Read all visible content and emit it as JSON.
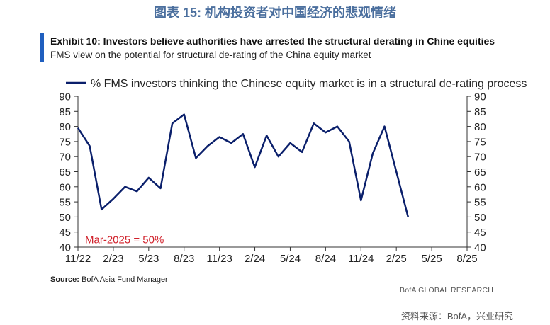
{
  "figure_title": "图表 15: 机构投资者对中国经济的悲观情绪",
  "exhibit": {
    "title": "Exhibit 10: Investors believe authorities have arrested the structural derating in Chine equities",
    "subtitle": "FMS view on the potential for structural de-rating of the China equity market"
  },
  "source_label": "Source:",
  "source_text": "BofA Asia Fund Manager",
  "brand": "BofA GLOBAL RESEARCH",
  "cn_source": "资料来源：BofA，兴业研究",
  "colors": {
    "line": "#0a1f6b",
    "annotation": "#d0202a",
    "title": "#4b6f9e",
    "accent": "#1f5fbf"
  },
  "chart_data": {
    "type": "line",
    "legend": "% FMS investors thinking the Chinese equity market is in a structural de-rating process",
    "legend_position": "top",
    "annotation": "Mar-2025 = 50%",
    "ylim": [
      40,
      90
    ],
    "yticks": [
      40,
      45,
      50,
      55,
      60,
      65,
      70,
      75,
      80,
      85,
      90
    ],
    "xticks": [
      "11/22",
      "2/23",
      "5/23",
      "8/23",
      "11/23",
      "2/24",
      "5/24",
      "8/24",
      "11/24",
      "2/25",
      "5/25",
      "8/25"
    ],
    "x": [
      "11/22",
      "12/22",
      "1/23",
      "2/23",
      "3/23",
      "4/23",
      "5/23",
      "6/23",
      "7/23",
      "8/23",
      "9/23",
      "10/23",
      "11/23",
      "12/23",
      "1/24",
      "2/24",
      "3/24",
      "4/24",
      "5/24",
      "6/24",
      "7/24",
      "8/24",
      "9/24",
      "10/24",
      "11/24",
      "12/24",
      "1/25",
      "2/25",
      "3/25"
    ],
    "series": [
      {
        "name": "% FMS investors thinking the Chinese equity market is in a structural de-rating process",
        "values": [
          79.5,
          73.5,
          52.5,
          56,
          60,
          58.5,
          63,
          59.5,
          81,
          84,
          69.5,
          73.5,
          76.5,
          74.5,
          77.5,
          66.5,
          77,
          70,
          74.5,
          71.5,
          81,
          78,
          80,
          75,
          55.5,
          71,
          80,
          65,
          50
        ]
      }
    ],
    "grid": false
  }
}
